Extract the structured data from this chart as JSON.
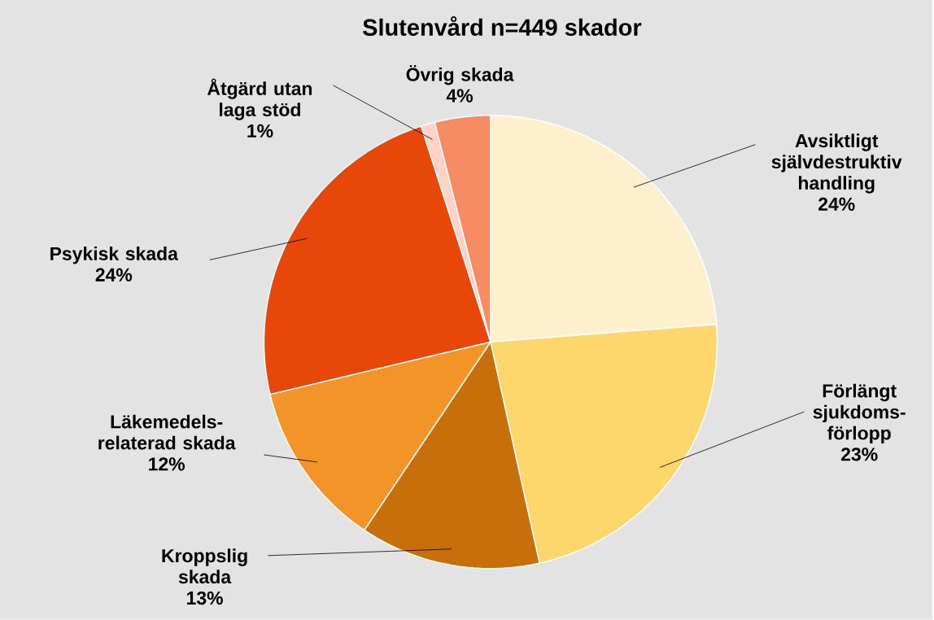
{
  "chart_data": {
    "type": "pie",
    "title": "Slutenvård n=449 skador",
    "categories": [
      "Avsiktligt självdestruktiv handling",
      "Förlängt sjukdoms-förlopp",
      "Kroppslig skada",
      "Läkemedels-relaterad skada",
      "Psykisk skada",
      "Åtgärd utan laga stöd",
      "Övrig skada"
    ],
    "values": [
      24,
      23,
      13,
      12,
      24,
      1,
      4
    ],
    "value_labels": [
      "24%",
      "23%",
      "13%",
      "12%",
      "24%",
      "1%",
      "4%"
    ],
    "colors": [
      "#FFF0CD",
      "#FDD76B",
      "#C66F0B",
      "#F29427",
      "#E8470A",
      "#FCD3C6",
      "#F78C62"
    ]
  }
}
